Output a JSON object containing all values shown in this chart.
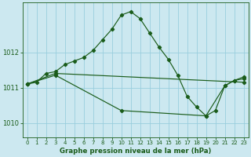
{
  "title": "Graphe pression niveau de la mer (hPa)",
  "bg_color": "#cce8f0",
  "grid_color": "#99cedd",
  "line_color": "#1a5c1a",
  "xlim": [
    -0.5,
    23.5
  ],
  "ylim": [
    1009.6,
    1013.4
  ],
  "yticks": [
    1010,
    1011,
    1012
  ],
  "xticks": [
    0,
    1,
    2,
    3,
    4,
    5,
    6,
    7,
    8,
    9,
    10,
    11,
    12,
    13,
    14,
    15,
    16,
    17,
    18,
    19,
    20,
    21,
    22,
    23
  ],
  "series1_x": [
    0,
    1,
    2,
    3,
    4,
    5,
    6,
    7,
    8,
    9,
    10,
    11,
    12,
    13,
    14,
    15,
    16,
    17,
    18,
    19,
    20,
    21,
    22,
    23
  ],
  "series1_y": [
    1011.1,
    1011.15,
    1011.4,
    1011.45,
    1011.65,
    1011.75,
    1011.85,
    1012.05,
    1012.35,
    1012.65,
    1013.05,
    1013.15,
    1012.95,
    1012.55,
    1012.15,
    1011.8,
    1011.35,
    1010.75,
    1010.45,
    1010.2,
    1010.35,
    1011.05,
    1011.2,
    1011.3
  ],
  "series2_x": [
    0,
    3,
    23
  ],
  "series2_y": [
    1011.1,
    1011.4,
    1011.15
  ],
  "series3_x": [
    0,
    3,
    10,
    19,
    21,
    22,
    23
  ],
  "series3_y": [
    1011.1,
    1011.35,
    1010.35,
    1010.2,
    1011.05,
    1011.2,
    1011.25
  ]
}
